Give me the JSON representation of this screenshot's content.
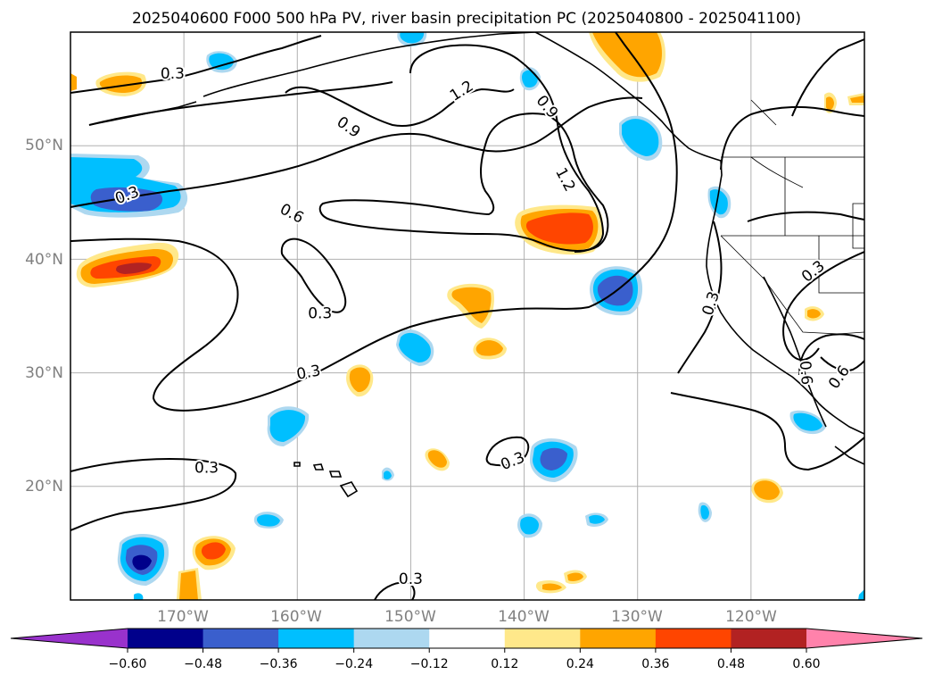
{
  "title": "2025040600 F000 500 hPa PV, river basin precipitation PC (2025040800 - 2025041100)",
  "axes": {
    "x_ticks": [
      "170°W",
      "160°W",
      "150°W",
      "140°W",
      "130°W",
      "120°W"
    ],
    "y_ticks": [
      "50°N",
      "40°N",
      "30°N",
      "20°N"
    ],
    "lon_range": [
      -180,
      -110
    ],
    "lat_range": [
      10,
      60
    ],
    "grid": true
  },
  "colorbar": {
    "tick_labels": [
      "−0.60",
      "−0.48",
      "−0.36",
      "−0.24",
      "−0.12",
      "0.12",
      "0.24",
      "0.36",
      "0.48",
      "0.60"
    ],
    "colors": [
      "#9932cc",
      "#00008b",
      "#3a5fcd",
      "#00bfff",
      "#add8f0",
      "#ffffff",
      "#ffe88a",
      "#ffa500",
      "#ff4500",
      "#b22222",
      "#ff82ab"
    ],
    "extend": "both"
  },
  "contour_labels": [
    {
      "text": "0.3",
      "lon": -171,
      "lat": 56.3,
      "rot": 0
    },
    {
      "text": "0.9",
      "lon": -155.5,
      "lat": 51.6,
      "rot": 35
    },
    {
      "text": "1.2",
      "lon": -145.5,
      "lat": 54.8,
      "rot": -32
    },
    {
      "text": "0.9",
      "lon": -138,
      "lat": 53.4,
      "rot": 50
    },
    {
      "text": "1.2",
      "lon": -136.4,
      "lat": 47.0,
      "rot": 62
    },
    {
      "text": "0.6",
      "lon": -160.5,
      "lat": 44.0,
      "rot": 28
    },
    {
      "text": "0.3",
      "lon": -175,
      "lat": 45.6,
      "rot": -20
    },
    {
      "text": "0.3",
      "lon": -158,
      "lat": 35.2,
      "rot": 0
    },
    {
      "text": "0.3",
      "lon": -159,
      "lat": 30.0,
      "rot": -10
    },
    {
      "text": "0.3",
      "lon": -168,
      "lat": 21.6,
      "rot": 0
    },
    {
      "text": "0.3",
      "lon": -141,
      "lat": 22.2,
      "rot": -22
    },
    {
      "text": "0.3",
      "lon": -150,
      "lat": 11.8,
      "rot": 0
    },
    {
      "text": "0.3",
      "lon": -123.5,
      "lat": 36.1,
      "rot": -72
    },
    {
      "text": "0.3",
      "lon": -114.5,
      "lat": 38.9,
      "rot": -38
    },
    {
      "text": "0.6",
      "lon": -115.2,
      "lat": 30.0,
      "rot": 85
    },
    {
      "text": "0.6",
      "lon": -112.2,
      "lat": 29.6,
      "rot": -55
    }
  ]
}
